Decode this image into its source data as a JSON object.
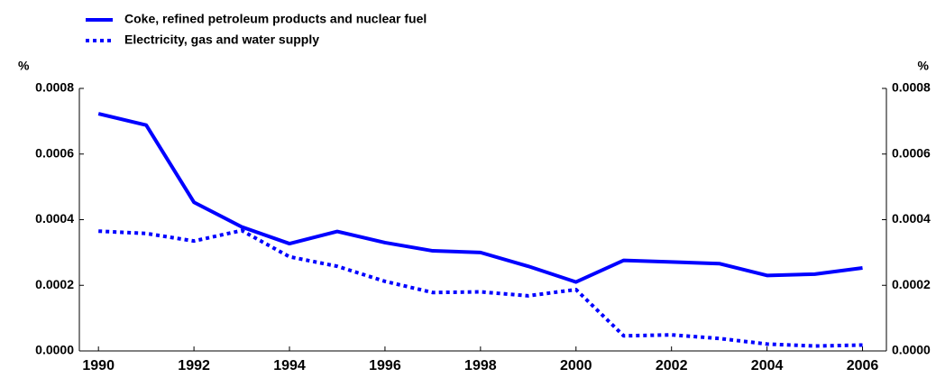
{
  "chart_data": {
    "type": "line",
    "x": [
      1990,
      1991,
      1992,
      1993,
      1994,
      1995,
      1996,
      1997,
      1998,
      1999,
      2000,
      2001,
      2002,
      2003,
      2004,
      2005,
      2006
    ],
    "series": [
      {
        "name": "Coke, refined petroleum products and nuclear fuel",
        "color": "#0000ff",
        "line_style": "solid",
        "values": [
          0.000723,
          0.000688,
          0.000453,
          0.000378,
          0.000327,
          0.000364,
          0.00033,
          0.000305,
          0.0003,
          0.000258,
          0.00021,
          0.000276,
          0.000271,
          0.000266,
          0.00023,
          0.000234,
          0.000253
        ]
      },
      {
        "name": "Electricity, gas and water supply",
        "color": "#0000ff",
        "line_style": "dotted",
        "values": [
          0.000365,
          0.000358,
          0.000335,
          0.000367,
          0.000287,
          0.000258,
          0.000212,
          0.000178,
          0.00018,
          0.000168,
          0.000187,
          4.6e-05,
          4.9e-05,
          3.8e-05,
          2.1e-05,
          1.5e-05,
          1.8e-05
        ]
      }
    ],
    "xlim": [
      1989.6,
      2006.5
    ],
    "xticks": [
      1990,
      1992,
      1994,
      1996,
      1998,
      2000,
      2002,
      2004,
      2006
    ],
    "ylim": [
      0,
      0.0008
    ],
    "yticks": [
      {
        "value": 0,
        "label": "0.0000"
      },
      {
        "value": 0.0002,
        "label": "0.0002"
      },
      {
        "value": 0.0004,
        "label": "0.0004"
      },
      {
        "value": 0.0006,
        "label": "0.0006"
      },
      {
        "value": 0.0008,
        "label": "0.0008"
      }
    ],
    "y2lim": [
      0,
      0.0008
    ],
    "y2ticks": [
      {
        "value": 0,
        "label": "0.0000"
      },
      {
        "value": 0.0002,
        "label": "0.0002"
      },
      {
        "value": 0.0004,
        "label": "0.0004"
      },
      {
        "value": 0.0006,
        "label": "0.0006"
      },
      {
        "value": 0.0008,
        "label": "0.0008"
      }
    ],
    "y_label": "%",
    "y2_label": "%",
    "legend": "top-left",
    "grid": false
  }
}
